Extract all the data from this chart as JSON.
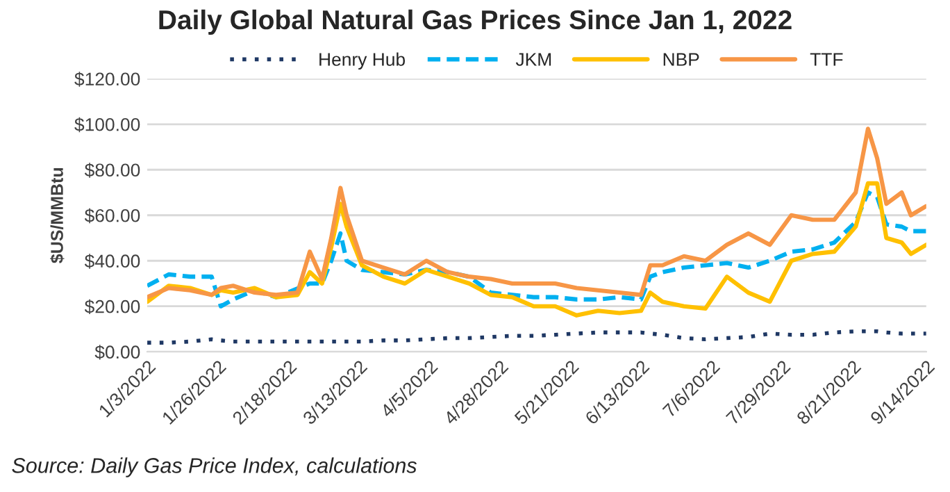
{
  "chart_data": {
    "type": "line",
    "title": "Daily Global Natural Gas Prices Since Jan 1, 2022",
    "ylabel": "$US/MMBtu",
    "x": [
      "2022-01-03",
      "2022-01-10",
      "2022-01-17",
      "2022-01-24",
      "2022-01-27",
      "2022-01-31",
      "2022-02-07",
      "2022-02-14",
      "2022-02-21",
      "2022-02-25",
      "2022-03-01",
      "2022-03-04",
      "2022-03-07",
      "2022-03-09",
      "2022-03-14",
      "2022-03-21",
      "2022-03-28",
      "2022-04-04",
      "2022-04-11",
      "2022-04-18",
      "2022-04-25",
      "2022-05-02",
      "2022-05-09",
      "2022-05-16",
      "2022-05-23",
      "2022-05-30",
      "2022-06-06",
      "2022-06-13",
      "2022-06-16",
      "2022-06-20",
      "2022-06-27",
      "2022-07-04",
      "2022-07-11",
      "2022-07-18",
      "2022-07-25",
      "2022-08-01",
      "2022-08-08",
      "2022-08-15",
      "2022-08-22",
      "2022-08-26",
      "2022-08-29",
      "2022-09-01",
      "2022-09-06",
      "2022-09-09",
      "2022-09-14"
    ],
    "series": [
      {
        "name": "Henry Hub",
        "color": "#1f3864",
        "line_style": "dotted",
        "values": [
          4,
          4,
          4.5,
          5.5,
          5,
          4.5,
          4.5,
          4.5,
          4.5,
          4.5,
          4.5,
          4.5,
          4.5,
          4.5,
          4.5,
          5,
          5,
          5.5,
          6,
          6,
          6.5,
          7,
          7,
          7.5,
          8,
          8.5,
          8.5,
          8.5,
          8,
          7.5,
          6,
          5.5,
          6,
          6.5,
          8,
          7.5,
          7.5,
          8.5,
          9,
          9,
          9,
          8.5,
          8,
          8,
          8
        ]
      },
      {
        "name": "JKM",
        "color": "#00b0f0",
        "line_style": "dashed",
        "values": [
          29,
          34,
          33,
          33,
          20,
          23,
          27,
          24,
          null,
          30,
          30,
          40,
          52,
          40,
          36,
          35,
          34,
          36,
          35,
          33,
          26,
          25,
          24,
          24,
          23,
          23,
          24,
          23,
          33,
          35,
          37,
          38,
          39,
          37,
          40,
          44,
          45,
          48,
          57,
          70,
          68,
          56,
          55,
          53,
          53
        ]
      },
      {
        "name": "NBP",
        "color": "#ffc000",
        "line_style": "solid",
        "values": [
          22,
          29,
          28,
          25,
          27,
          26,
          28,
          24,
          25,
          35,
          30,
          46,
          65,
          55,
          38,
          33,
          30,
          36,
          33,
          30,
          25,
          24,
          20,
          20,
          16,
          18,
          17,
          18,
          26,
          22,
          20,
          19,
          33,
          26,
          22,
          40,
          43,
          44,
          55,
          74,
          74,
          50,
          48,
          43,
          47
        ]
      },
      {
        "name": "TTF",
        "color": "#f79646",
        "line_style": "solid",
        "values": [
          24,
          28,
          27,
          25,
          28,
          29,
          26,
          25,
          26,
          44,
          32,
          50,
          72,
          60,
          40,
          37,
          34,
          40,
          35,
          33,
          32,
          30,
          30,
          30,
          28,
          27,
          26,
          25,
          38,
          38,
          42,
          40,
          47,
          52,
          47,
          60,
          58,
          58,
          70,
          98,
          85,
          65,
          70,
          60,
          64
        ]
      }
    ],
    "ylim": [
      0,
      120
    ],
    "yticks": [
      {
        "value": 0,
        "label": "$0.00"
      },
      {
        "value": 20,
        "label": "$20.00"
      },
      {
        "value": 40,
        "label": "$40.00"
      },
      {
        "value": 60,
        "label": "$60.00"
      },
      {
        "value": 80,
        "label": "$80.00"
      },
      {
        "value": 100,
        "label": "$100.00"
      },
      {
        "value": 120,
        "label": "$120.00"
      }
    ],
    "xlim": [
      "2022-01-03",
      "2022-09-14"
    ],
    "xticks": [
      {
        "value": "2022-01-03",
        "label": "1/3/2022"
      },
      {
        "value": "2022-01-26",
        "label": "1/26/2022"
      },
      {
        "value": "2022-02-18",
        "label": "2/18/2022"
      },
      {
        "value": "2022-03-13",
        "label": "3/13/2022"
      },
      {
        "value": "2022-04-05",
        "label": "4/5/2022"
      },
      {
        "value": "2022-04-28",
        "label": "4/28/2022"
      },
      {
        "value": "2022-05-21",
        "label": "5/21/2022"
      },
      {
        "value": "2022-06-13",
        "label": "6/13/2022"
      },
      {
        "value": "2022-07-06",
        "label": "7/6/2022"
      },
      {
        "value": "2022-07-29",
        "label": "7/29/2022"
      },
      {
        "value": "2022-08-21",
        "label": "8/21/2022"
      },
      {
        "value": "2022-09-14",
        "label": "9/14/2022"
      }
    ],
    "grid": "y",
    "legend": "top",
    "annotations": [
      "Source: Daily Gas Price Index, calculations"
    ]
  }
}
